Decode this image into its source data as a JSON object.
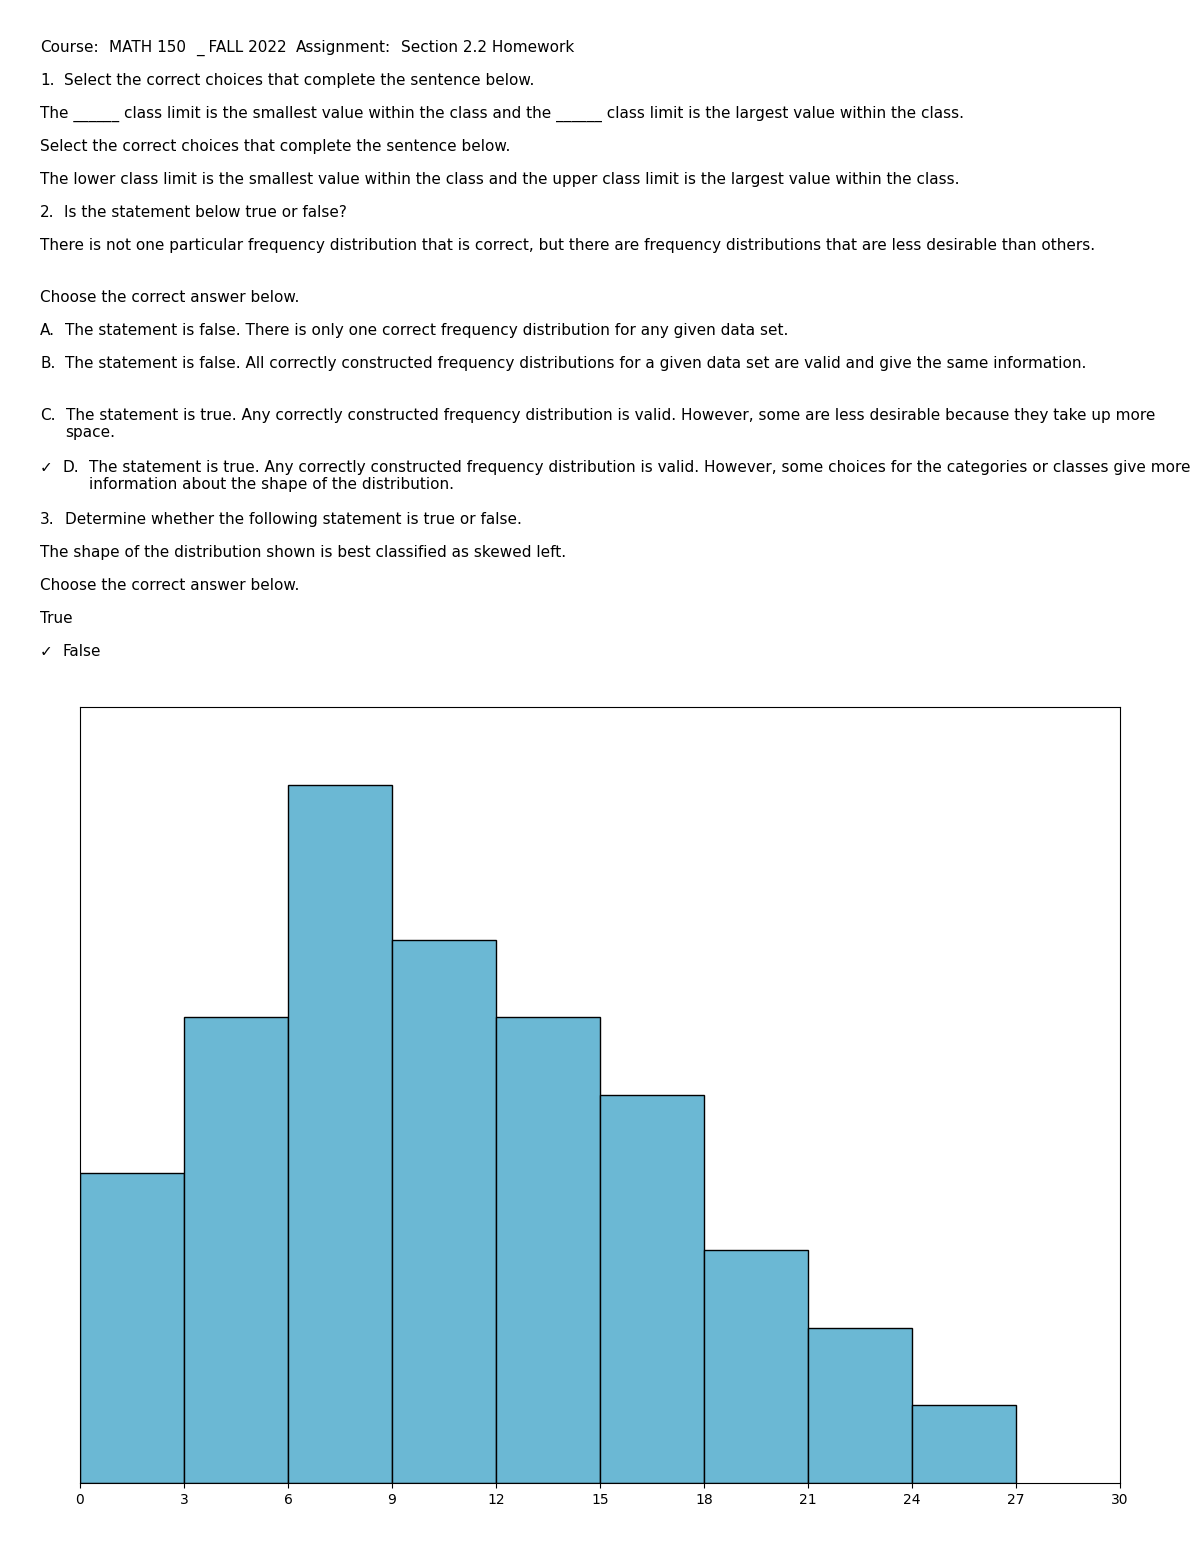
{
  "chart_data": {
    "type": "histogram",
    "annotations": [
      [
        "Course:",
        "MATH 150",
        "_ FALL 2022",
        "Assignment:",
        "Section 2.2 Homework"
      ],
      [
        "1.",
        "Select the correct choices that complete the sentence below."
      ],
      [
        "The ______ class limit is the smallest value within the class and the ______ class limit is the largest value within the class."
      ],
      [
        "Select the correct choices that complete the sentence below."
      ],
      [
        "The lower class limit is the smallest value within the class and the upper class limit is the largest value within the class."
      ],
      [
        "2.",
        "Is the statement below true or false?"
      ],
      [
        "There is not one particular frequency distribution that is correct, but there are frequency distributions that are less desirable than others."
      ],
      [
        "Choose the correct answer below."
      ],
      [
        "A.",
        "The statement is false. There is only one correct frequency distribution for any given data set."
      ],
      [
        "B.",
        "The statement is false. All correctly constructed frequency distributions for a given data set are valid and give the same information."
      ],
      [
        "C.",
        "The statement is true. Any correctly constructed frequency distribution is valid. However, some are less desirable because they take up more space."
      ],
      [
        "✓",
        "D.",
        "The statement is true. Any correctly constructed frequency distribution is valid. However, some choices for the categories or classes give more information about the shape of the distribution."
      ],
      [
        "3.",
        "Determine whether the following statement is true or false."
      ],
      [
        "The shape of the distribution shown is best classified as skewed left."
      ],
      [
        "Choose the correct answer below."
      ],
      [
        "True"
      ],
      [
        "✓",
        "False"
      ]
    ],
    "bins": [
      0,
      3,
      6,
      9,
      12,
      15,
      18,
      21,
      24,
      27
    ],
    "values": [
      4,
      6,
      9,
      7,
      6,
      5,
      3,
      2,
      1
    ],
    "color": "#6bb8d4",
    "xlim": [
      0,
      30
    ],
    "xticks": [
      0,
      3,
      6,
      9,
      12,
      15,
      18,
      21,
      24,
      27,
      30
    ],
    "ylim": [
      0,
      10
    ],
    "tick_labels": "x"
  }
}
